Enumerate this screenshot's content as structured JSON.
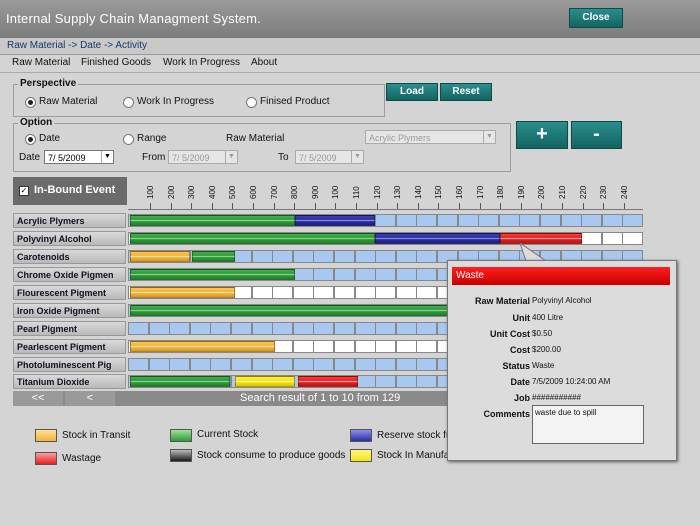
{
  "app": {
    "title": "Internal Supply Chain Managment System.",
    "close_label": "Close"
  },
  "breadcrumb": "Raw Material -> Date -> Activity",
  "menu": [
    "Raw Material",
    "Finished Goods",
    "Work In Progress",
    "About"
  ],
  "perspective": {
    "title": "Perspective",
    "options": [
      "Raw Material",
      "Work In Progress",
      "Finised Product"
    ],
    "selected": 0
  },
  "buttons": {
    "load": "Load",
    "reset": "Reset",
    "zoom_in": "+",
    "zoom_out": "-"
  },
  "option": {
    "title": "Option",
    "date_label": "Date",
    "range_label": "Range",
    "date_field_label": "Date",
    "date_value": "7/ 5/2009",
    "from_label": "From",
    "from_value": "7/ 5/2009",
    "to_label": "To",
    "to_value": "7/ 5/2009",
    "raw_material_label": "Raw Material",
    "raw_material_value": "Acrylic Plymers"
  },
  "event_header": "In-Bound Event",
  "ticks": [
    "100",
    "200",
    "300",
    "400",
    "500",
    "600",
    "700",
    "800",
    "900",
    "100",
    "110",
    "120",
    "130",
    "140",
    "150",
    "160",
    "170",
    "180",
    "190",
    "200",
    "210",
    "220",
    "230",
    "240"
  ],
  "rows": [
    "Acrylic Plymers",
    "Polyvinyl Alcohol",
    "Carotenoids",
    "Chrome Oxide Pigmen",
    "Flourescent Pigment",
    "Iron Oxide Pigment",
    "Pearl Pigment",
    "Pearlescent Pigment",
    "Photoluminescent Pig",
    "Titanium Dioxide"
  ],
  "pager": {
    "first": "<<",
    "prev": "<",
    "result": "Search result of 1 to 10 from 129"
  },
  "legend": [
    "Stock in Transit",
    "Current Stock",
    "Reserve stock fu",
    "Wastage",
    "Stock consume to produce goods",
    "Stock In Manufa"
  ],
  "colors": {
    "transit": "#f2b33a",
    "current": "#2f9a3b",
    "reserve": "#2b2f9c",
    "wastage": "#e32121",
    "consumed": "#1b1b1b",
    "manufacture": "#f5e410",
    "blue_cell": "#a9c8ef"
  },
  "popup": {
    "title": "Waste",
    "fields": [
      {
        "label": "Raw Material",
        "value": "Polyvinyl Alcohol"
      },
      {
        "label": "Unit",
        "value": "400 Litre"
      },
      {
        "label": "Unit Cost",
        "value": "$0.50"
      },
      {
        "label": "Cost",
        "value": "$200.00"
      },
      {
        "label": "Status",
        "value": "Waste"
      },
      {
        "label": "Date",
        "value": "7/5/2009 10:24:00 AM"
      },
      {
        "label": "Job",
        "value": "###########"
      },
      {
        "label": "Comments",
        "value": "waste due to spill"
      }
    ]
  }
}
